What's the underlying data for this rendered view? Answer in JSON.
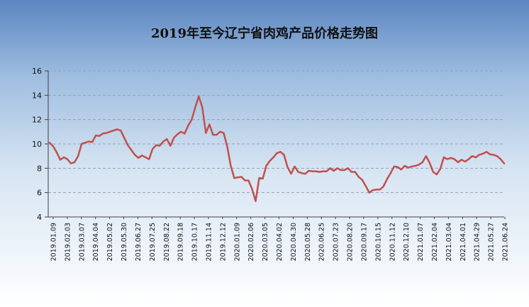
{
  "chart_data": {
    "type": "line",
    "title": "2019年至今辽宁省肉鸡产品价格走势图",
    "xlabel": "",
    "ylabel": "",
    "ylim": [
      4,
      16
    ],
    "yticks": [
      4,
      6,
      8,
      10,
      12,
      14,
      16
    ],
    "grid": "horizontal dashed",
    "legend": "none",
    "colors": {
      "line": "#c0504d",
      "grid": "#8fa3bd",
      "axis": "#404040"
    },
    "x_tick_labels": [
      "2019.01.09",
      "2019.02.03",
      "2019.03.07",
      "2019.04.04",
      "2019.05.02",
      "2019.05.30",
      "2019.06.27",
      "2019.07.25",
      "2019.08.22",
      "2019.09.18",
      "2019.10.17",
      "2019.11.14",
      "2019.12.12",
      "2020.01.09",
      "2020.02.06",
      "2020.03.05",
      "2020.04.02",
      "2020.04.30",
      "2020.05.28",
      "2020.06.25",
      "2020.07.23",
      "2020.08.20",
      "2020.09.17",
      "2020.10.15",
      "2020.11.12",
      "2020.12.10",
      "2021.01.07",
      "2021.02.04",
      "2021.03.04",
      "2021.04.01",
      "2021.04.29",
      "2021.05.27",
      "2021.06.24"
    ],
    "series": [
      {
        "values": [
          10.1,
          9.8,
          9.3,
          8.7,
          8.9,
          8.75,
          8.4,
          8.5,
          9.0,
          10.0,
          10.1,
          10.2,
          10.15,
          10.7,
          10.65,
          10.85,
          10.9,
          11.0,
          11.1,
          11.2,
          11.1,
          10.5,
          9.9,
          9.5,
          9.1,
          8.85,
          9.05,
          8.9,
          8.75,
          9.6,
          9.9,
          9.85,
          10.2,
          10.4,
          9.85,
          10.5,
          10.8,
          11.0,
          10.85,
          11.5,
          12.0,
          13.0,
          13.9,
          13.0,
          10.9,
          11.6,
          10.75,
          10.75,
          11.0,
          10.9,
          9.8,
          8.2,
          7.2,
          7.25,
          7.3,
          7.0,
          7.0,
          6.3,
          5.3,
          7.2,
          7.15,
          8.2,
          8.6,
          8.9,
          9.25,
          9.35,
          9.1,
          8.1,
          7.55,
          8.15,
          7.7,
          7.6,
          7.55,
          7.8,
          7.75,
          7.75,
          7.7,
          7.75,
          7.75,
          8.0,
          7.8,
          8.0,
          7.85,
          7.85,
          8.0,
          7.7,
          7.7,
          7.3,
          7.05,
          6.55,
          6.0,
          6.2,
          6.25,
          6.25,
          6.5,
          7.1,
          7.6,
          8.15,
          8.1,
          7.9,
          8.2,
          8.05,
          8.15,
          8.2,
          8.3,
          8.5,
          9.0,
          8.45,
          7.7,
          7.5,
          7.95,
          8.9,
          8.75,
          8.85,
          8.75,
          8.5,
          8.7,
          8.55,
          8.75,
          9.0,
          8.9,
          9.1,
          9.2,
          9.35,
          9.15,
          9.1,
          9.0,
          8.75,
          8.4
        ]
      }
    ]
  }
}
